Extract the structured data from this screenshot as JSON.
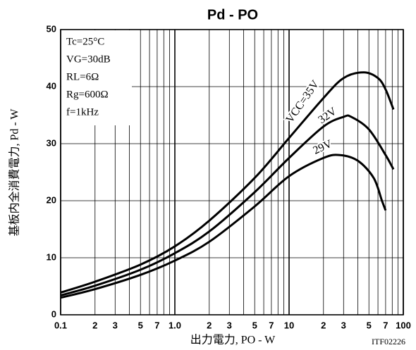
{
  "chart_data": {
    "type": "line",
    "title": "Pd - PO",
    "x_label": "出力電力, PO - W",
    "y_label": "基板内全消費電力, Pd - W",
    "code": "ITF02226",
    "annotations": [
      "Tc=25°C",
      "VG=30dB",
      "RL=6Ω",
      "Rg=600Ω",
      "f=1kHz"
    ],
    "xscale": "log",
    "grid": true,
    "xlim": [
      0.1,
      100
    ],
    "ylim": [
      0,
      50
    ],
    "xticks": [
      0.1,
      {
        "value": 0.2,
        "label": "2"
      },
      {
        "value": 0.3,
        "label": "3"
      },
      {
        "value": 0.5,
        "label": "5"
      },
      {
        "value": 0.7,
        "label": "7"
      },
      {
        "value": 1,
        "label": "1.0"
      },
      2,
      3,
      5,
      7,
      10,
      {
        "value": 20,
        "label": "2"
      },
      {
        "value": 30,
        "label": "3"
      },
      {
        "value": 50,
        "label": "5"
      },
      {
        "value": 70,
        "label": "7"
      },
      100
    ],
    "xminor": [
      0.4,
      0.6,
      0.8,
      0.9,
      4,
      6,
      8,
      9,
      40,
      60,
      80,
      90
    ],
    "yticks": [
      0,
      10,
      20,
      30,
      40,
      50
    ],
    "series": [
      {
        "name": "VCC=35V",
        "color": "#000000",
        "x": [
          0.1,
          0.2,
          0.5,
          1,
          2,
          5,
          10,
          20,
          30,
          45,
          60,
          70,
          82
        ],
        "values": [
          3.9,
          5.8,
          8.8,
          12,
          16.5,
          24,
          31,
          38,
          41.5,
          42.5,
          41.5,
          39.5,
          36
        ]
      },
      {
        "name": "32V",
        "color": "#000000",
        "x": [
          0.1,
          0.2,
          0.5,
          1,
          2,
          5,
          10,
          20,
          30,
          35,
          50,
          70,
          82
        ],
        "values": [
          3.4,
          5.1,
          7.9,
          10.8,
          14.6,
          21.5,
          27.5,
          33,
          34.7,
          34.7,
          32.5,
          28,
          25.5
        ]
      },
      {
        "name": "29V",
        "color": "#000000",
        "x": [
          0.1,
          0.2,
          0.5,
          1,
          2,
          5,
          10,
          20,
          28,
          40,
          55,
          65,
          70
        ],
        "values": [
          3,
          4.5,
          7,
          9.5,
          12.8,
          19,
          24.3,
          27.5,
          28,
          27,
          24,
          20,
          18.3
        ]
      }
    ]
  }
}
